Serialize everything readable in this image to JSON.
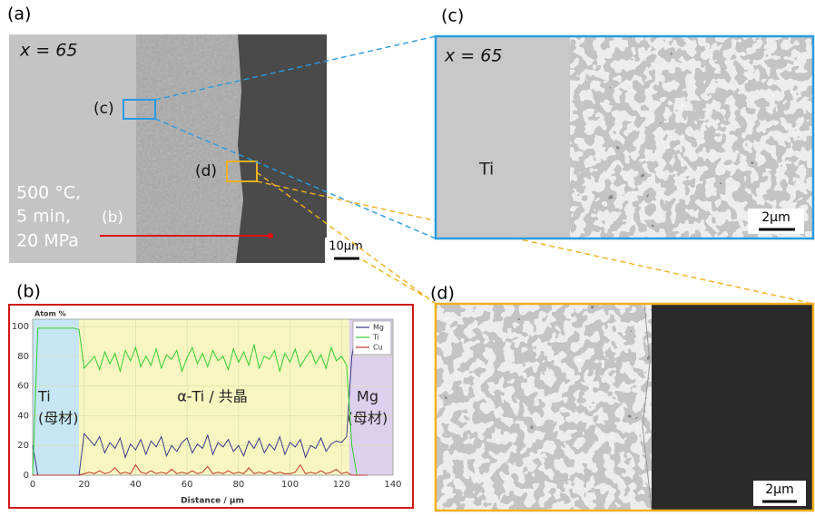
{
  "panels": {
    "a": {
      "label": "(a)",
      "composition": "x = 65",
      "conditions": [
        "500 °C,",
        "5 min,",
        "20 MPa"
      ],
      "marker_c": "(c)",
      "marker_d": "(d)",
      "marker_b": "(b)",
      "scale": "10μm"
    },
    "b": {
      "label": "(b)"
    },
    "c": {
      "label": "(c)",
      "composition": "x = 65",
      "phase": "Ti",
      "scale": "2μm"
    },
    "d": {
      "label": "(d)",
      "scale": "2μm"
    }
  },
  "chart_data": {
    "type": "line",
    "y_label": "Atom %",
    "x_label": "Distance / μm",
    "x": [
      0,
      2,
      4,
      6,
      8,
      10,
      12,
      14,
      16,
      18,
      20,
      22,
      24,
      26,
      28,
      30,
      32,
      34,
      36,
      38,
      40,
      42,
      44,
      46,
      48,
      50,
      52,
      54,
      56,
      58,
      60,
      62,
      64,
      66,
      68,
      70,
      72,
      74,
      76,
      78,
      80,
      82,
      84,
      86,
      88,
      90,
      92,
      94,
      96,
      98,
      100,
      102,
      104,
      106,
      108,
      110,
      112,
      114,
      116,
      118,
      120,
      122,
      124,
      126,
      128,
      130
    ],
    "series": [
      {
        "name": "Mg",
        "color": "#3a3a8c",
        "values": [
          20,
          0,
          0,
          0,
          0,
          0,
          0,
          0,
          0,
          0,
          28,
          24,
          20,
          26,
          15,
          22,
          18,
          25,
          12,
          21,
          17,
          24,
          14,
          23,
          19,
          26,
          13,
          20,
          16,
          22,
          25,
          15,
          21,
          18,
          27,
          14,
          22,
          19,
          24,
          16,
          20,
          13,
          23,
          18,
          25,
          15,
          21,
          17,
          26,
          14,
          22,
          19,
          24,
          12,
          20,
          18,
          25,
          16,
          21,
          23,
          22,
          26,
          80,
          100,
          100,
          100
        ]
      },
      {
        "name": "Ti",
        "color": "#33cc33",
        "values": [
          0,
          99,
          99,
          99,
          99,
          99,
          99,
          99,
          99,
          98,
          72,
          76,
          80,
          71,
          83,
          75,
          82,
          70,
          84,
          77,
          86,
          73,
          80,
          74,
          85,
          72,
          81,
          78,
          84,
          70,
          79,
          86,
          75,
          82,
          73,
          84,
          77,
          80,
          71,
          85,
          76,
          83,
          74,
          88,
          72,
          80,
          78,
          84,
          70,
          82,
          76,
          85,
          73,
          79,
          84,
          75,
          81,
          72,
          86,
          77,
          80,
          74,
          20,
          0,
          0,
          0
        ]
      },
      {
        "name": "Cu",
        "color": "#c0392b",
        "values": [
          0,
          0,
          0,
          0,
          0,
          0,
          0,
          0,
          0,
          0,
          1,
          2,
          1,
          3,
          1,
          2,
          5,
          1,
          2,
          1,
          7,
          2,
          1,
          3,
          1,
          2,
          1,
          4,
          1,
          2,
          1,
          3,
          1,
          2,
          6,
          1,
          2,
          1,
          3,
          1,
          2,
          1,
          5,
          1,
          2,
          1,
          3,
          1,
          2,
          1,
          1,
          2,
          7,
          1,
          2,
          1,
          3,
          1,
          2,
          4,
          1,
          2,
          0,
          0,
          0,
          0
        ]
      }
    ],
    "xlim": [
      0,
      140
    ],
    "xticks": [
      0,
      20,
      40,
      60,
      80,
      100,
      120,
      140
    ],
    "ylim": [
      0,
      105
    ],
    "yticks": [
      0,
      20,
      40,
      60,
      80,
      100
    ],
    "grid": true,
    "legend": "top-right",
    "regions": [
      {
        "from": 0,
        "to": 18,
        "color": "#c6e6f5",
        "labels": [
          "Ti",
          "(母材)"
        ]
      },
      {
        "from": 18,
        "to": 123,
        "color": "#f8f6c0",
        "labels": [
          "α-Ti / 共晶"
        ]
      },
      {
        "from": 123,
        "to": 140,
        "color": "#ddd0ee",
        "labels": [
          "Mg",
          "(母材)"
        ]
      }
    ]
  }
}
